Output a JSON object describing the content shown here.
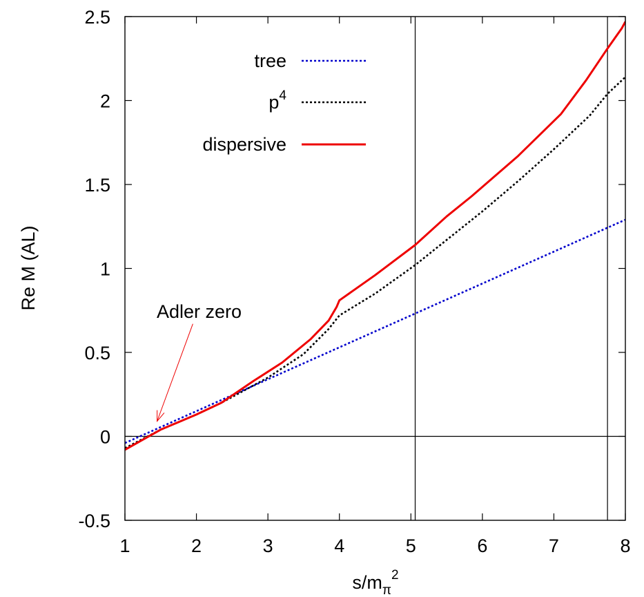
{
  "chart_data": {
    "type": "line",
    "xlabel": "s/m",
    "xlabel_subscript": "π",
    "xlabel_superscript": "2",
    "ylabel": "Re M (AL)",
    "xlim": [
      1,
      8
    ],
    "ylim": [
      -0.5,
      2.5
    ],
    "xticks": [
      1,
      2,
      3,
      4,
      5,
      6,
      7,
      8
    ],
    "xtick_labels": [
      "1",
      "2",
      "3",
      "4",
      "5",
      "6",
      "7",
      "8"
    ],
    "yticks": [
      -0.5,
      0,
      0.5,
      1,
      1.5,
      2,
      2.5
    ],
    "ytick_labels": [
      "-0.5",
      "0",
      "0.5",
      "1",
      "1.5",
      "2",
      "2.5"
    ],
    "grid": false,
    "legend_position": "top-center",
    "reference_lines": {
      "horizontal": [
        0
      ],
      "vertical": [
        5.06,
        7.75
      ]
    },
    "series": [
      {
        "name": "tree",
        "color": "#0000cc",
        "style": "dotted",
        "x": [
          1.0,
          8.0
        ],
        "y": [
          -0.04,
          1.29
        ]
      },
      {
        "name": "p",
        "name_superscript": "4",
        "color": "#000000",
        "style": "dotted",
        "x": [
          1.0,
          1.5,
          2.0,
          2.35,
          3.0,
          3.5,
          3.85,
          4.0,
          4.5,
          5.06,
          5.5,
          6.0,
          6.5,
          7.0,
          7.5,
          7.75,
          8.0
        ],
        "y": [
          -0.07,
          0.04,
          0.13,
          0.2,
          0.35,
          0.49,
          0.64,
          0.72,
          0.85,
          1.02,
          1.17,
          1.34,
          1.52,
          1.71,
          1.91,
          2.04,
          2.14
        ]
      },
      {
        "name": "dispersive",
        "color": "#ee0000",
        "style": "solid",
        "x": [
          1.0,
          1.5,
          2.0,
          2.35,
          2.8,
          3.2,
          3.6,
          3.85,
          3.96,
          4.0,
          4.5,
          5.06,
          5.5,
          5.85,
          6.5,
          7.1,
          7.45,
          7.75,
          7.95,
          8.0
        ],
        "y": [
          -0.08,
          0.04,
          0.13,
          0.2,
          0.33,
          0.44,
          0.58,
          0.69,
          0.77,
          0.81,
          0.96,
          1.14,
          1.31,
          1.43,
          1.67,
          1.92,
          2.12,
          2.31,
          2.43,
          2.47
        ]
      }
    ],
    "annotation": {
      "text": "Adler zero",
      "arrow_from": [
        1.95,
        0.67
      ],
      "arrow_to": [
        1.45,
        0.09
      ]
    }
  }
}
